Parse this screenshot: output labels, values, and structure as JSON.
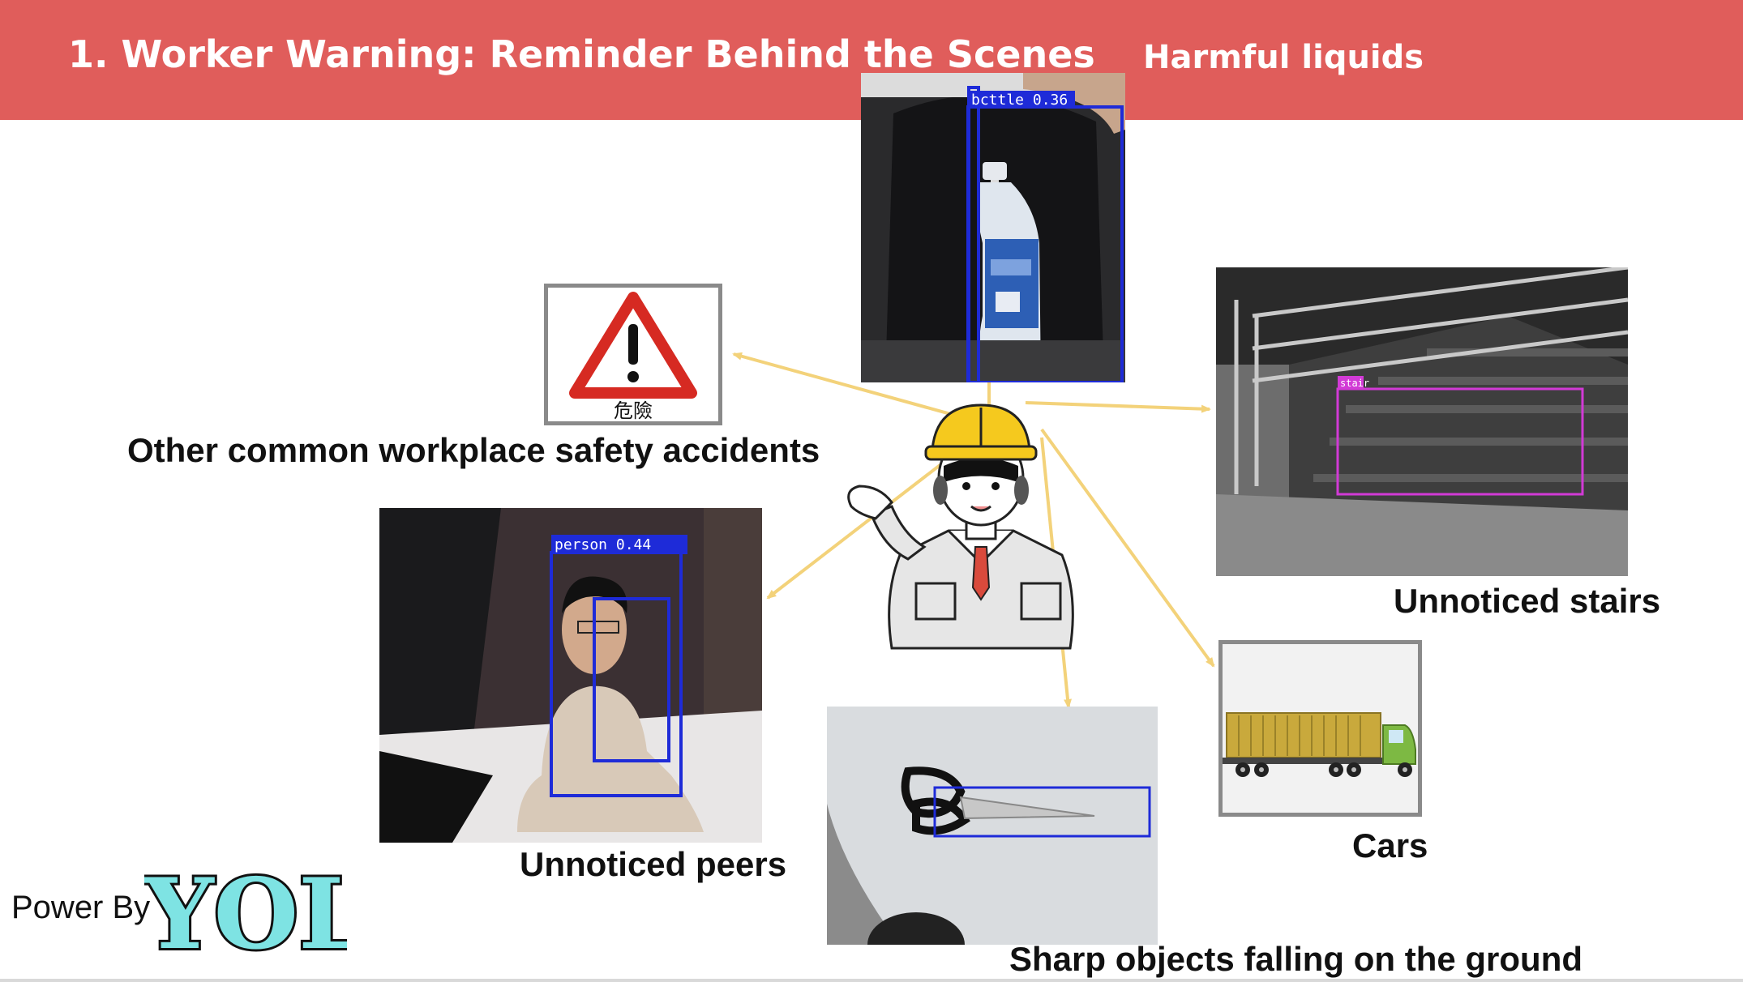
{
  "header": {
    "title": "1. Worker Warning: Reminder Behind the Scenes",
    "subtitle": "Harmful liquids"
  },
  "captions": {
    "other": "Other common workplace safety accidents",
    "stairs": "Unnoticed stairs",
    "peers": "Unnoticed peers",
    "cars": "Cars",
    "sharp": "Sharp objects falling on the ground"
  },
  "detections": {
    "bottle": "bcttle 0.36",
    "person": "person 0.44",
    "stair": "stair"
  },
  "danger_sign": {
    "text": "危險"
  },
  "footer": {
    "power_by": "Power By",
    "logo_text": "YOLO"
  },
  "colors": {
    "header_bg": "#E05D5B",
    "arrow": "#F3D27A",
    "detection_blue": "#1E2BD8",
    "detection_magenta": "#D23AD6"
  },
  "icons": [
    "warning-triangle-icon",
    "worker-illustration",
    "truck-icon",
    "yolo-logo"
  ]
}
